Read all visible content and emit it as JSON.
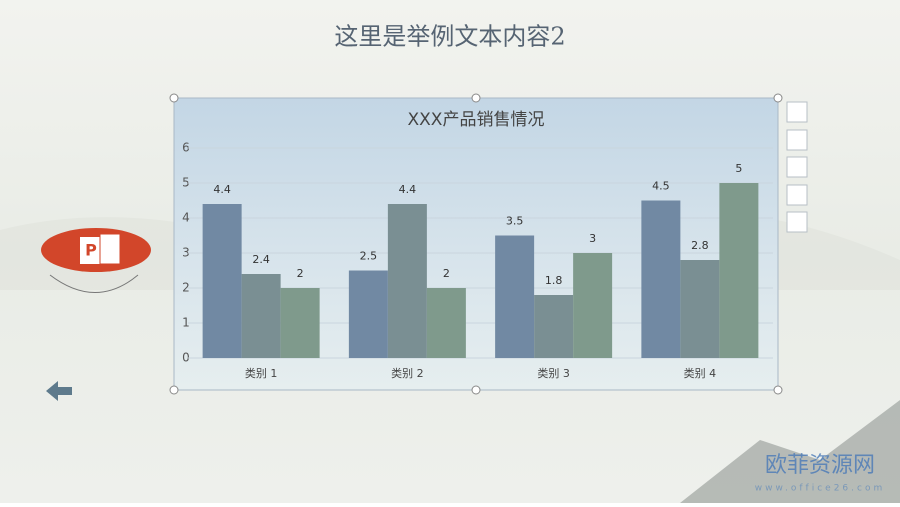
{
  "slide_title": "这里是举例文本内容2",
  "chart_data": {
    "type": "bar",
    "title": "XXX产品销售情况",
    "categories": [
      "类别 1",
      "类别 2",
      "类别 3",
      "类别 4"
    ],
    "series": [
      {
        "color": "#7189a3",
        "values": [
          4.4,
          2.5,
          3.5,
          4.5
        ]
      },
      {
        "color": "#7a8f93",
        "values": [
          2.4,
          4.4,
          1.8,
          2.8
        ]
      },
      {
        "color": "#7f9a8c",
        "values": [
          2,
          2,
          3,
          5
        ]
      }
    ],
    "ylim": [
      0,
      6
    ],
    "yticks": [
      0,
      1,
      2,
      3,
      4,
      5,
      6
    ],
    "grid": true
  },
  "watermark": {
    "name": "欧菲资源网",
    "url": "www.office26.com"
  }
}
